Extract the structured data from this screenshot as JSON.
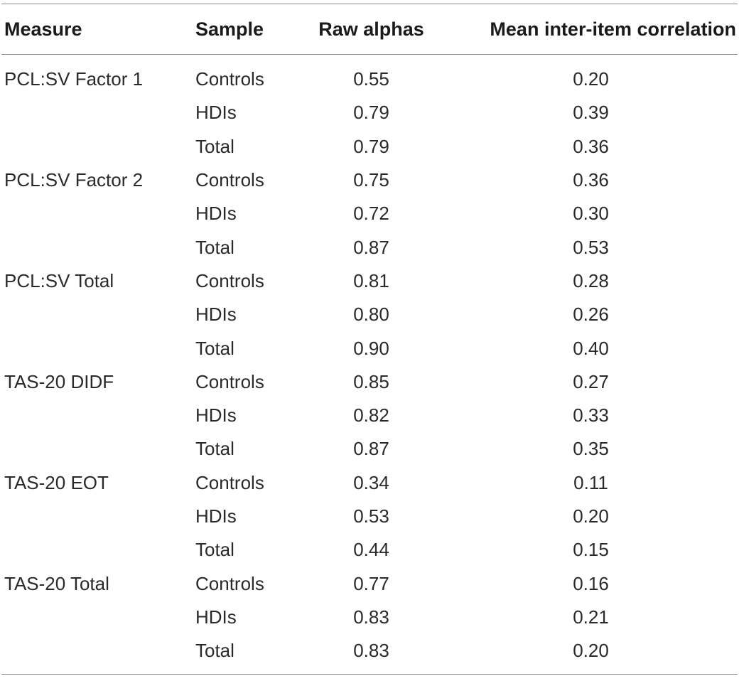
{
  "table": {
    "headers": {
      "measure": "Measure",
      "sample": "Sample",
      "raw_alphas": "Raw alphas",
      "mean_inter_item": "Mean inter-item correlation"
    },
    "rows": [
      {
        "measure": "PCL:SV Factor 1",
        "sample": "Controls",
        "alpha": "0.55",
        "corr": "0.20"
      },
      {
        "measure": "",
        "sample": "HDIs",
        "alpha": "0.79",
        "corr": "0.39"
      },
      {
        "measure": "",
        "sample": "Total",
        "alpha": "0.79",
        "corr": "0.36"
      },
      {
        "measure": "PCL:SV Factor 2",
        "sample": "Controls",
        "alpha": "0.75",
        "corr": "0.36"
      },
      {
        "measure": "",
        "sample": "HDIs",
        "alpha": "0.72",
        "corr": "0.30"
      },
      {
        "measure": "",
        "sample": "Total",
        "alpha": "0.87",
        "corr": "0.53"
      },
      {
        "measure": "PCL:SV Total",
        "sample": "Controls",
        "alpha": "0.81",
        "corr": "0.28"
      },
      {
        "measure": "",
        "sample": "HDIs",
        "alpha": "0.80",
        "corr": "0.26"
      },
      {
        "measure": "",
        "sample": "Total",
        "alpha": "0.90",
        "corr": "0.40"
      },
      {
        "measure": "TAS-20 DIDF",
        "sample": "Controls",
        "alpha": "0.85",
        "corr": "0.27"
      },
      {
        "measure": "",
        "sample": "HDIs",
        "alpha": "0.82",
        "corr": "0.33"
      },
      {
        "measure": "",
        "sample": "Total",
        "alpha": "0.87",
        "corr": "0.35"
      },
      {
        "measure": "TAS-20 EOT",
        "sample": "Controls",
        "alpha": "0.34",
        "corr": "0.11"
      },
      {
        "measure": "",
        "sample": "HDIs",
        "alpha": "0.53",
        "corr": "0.20"
      },
      {
        "measure": "",
        "sample": "Total",
        "alpha": "0.44",
        "corr": "0.15"
      },
      {
        "measure": "TAS-20 Total",
        "sample": "Controls",
        "alpha": "0.77",
        "corr": "0.16"
      },
      {
        "measure": "",
        "sample": "HDIs",
        "alpha": "0.83",
        "corr": "0.21"
      },
      {
        "measure": "",
        "sample": "Total",
        "alpha": "0.83",
        "corr": "0.20"
      }
    ]
  }
}
